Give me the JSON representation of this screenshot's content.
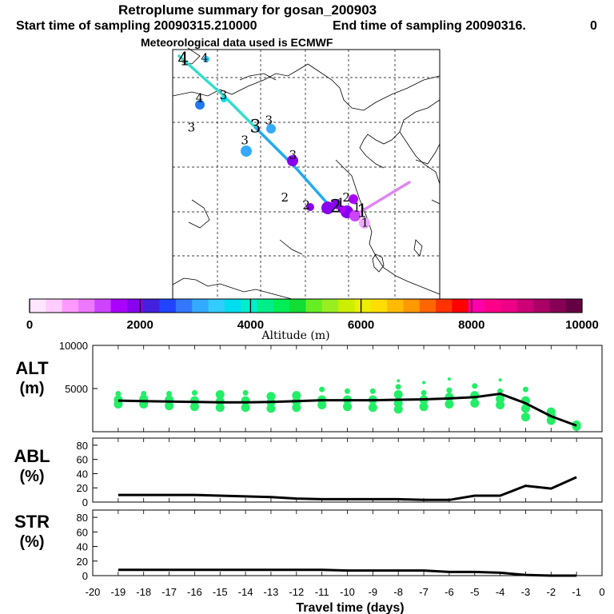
{
  "header": {
    "title": "Retroplume summary for gosan_200903",
    "start_label": "Start time of sampling 20090315.210000",
    "end_label": "End time of sampling 20090316.",
    "end_suffix": "0",
    "met_label": "Meteorological data used is ECMWF"
  },
  "colorbar": {
    "label": "Altitude (m)",
    "ticks": [
      "0",
      "2000",
      "4000",
      "6000",
      "8000",
      "10000"
    ],
    "min": 0,
    "max": 10000,
    "colors": [
      "#ffe6ff",
      "#ffccff",
      "#ff99ff",
      "#ee77ff",
      "#cc44ff",
      "#aa00ff",
      "#8800ee",
      "#4422dd",
      "#2244ff",
      "#3377ff",
      "#33aaff",
      "#33ccff",
      "#00ddee",
      "#00eecc",
      "#00ee88",
      "#00ee55",
      "#11dd33",
      "#66ee22",
      "#99ee22",
      "#ccee00",
      "#eeee00",
      "#ffdd00",
      "#ffbb00",
      "#ff9900",
      "#ff6600",
      "#ff3300",
      "#ff0000",
      "#ff00aa",
      "#ff0088",
      "#ee0088",
      "#cc0077",
      "#aa0066",
      "#880055",
      "#660044"
    ]
  },
  "map": {
    "trajectory_labels": [
      {
        "text": "4",
        "lon": 0.04,
        "lat": 0.03,
        "big": true
      },
      {
        "text": "4",
        "lon": 0.12,
        "lat": 0.03,
        "big": false
      },
      {
        "text": "4",
        "lon": 0.1,
        "lat": 0.19,
        "big": false
      },
      {
        "text": "3",
        "lon": 0.19,
        "lat": 0.18,
        "big": false
      },
      {
        "text": "3",
        "lon": 0.07,
        "lat": 0.31,
        "big": false
      },
      {
        "text": "3",
        "lon": 0.31,
        "lat": 0.3,
        "big": true
      },
      {
        "text": "3",
        "lon": 0.36,
        "lat": 0.28,
        "big": false
      },
      {
        "text": "3",
        "lon": 0.27,
        "lat": 0.36,
        "big": false
      },
      {
        "text": "3",
        "lon": 0.45,
        "lat": 0.42,
        "big": false
      },
      {
        "text": "2",
        "lon": 0.42,
        "lat": 0.59,
        "big": false
      },
      {
        "text": "2",
        "lon": 0.5,
        "lat": 0.62,
        "big": false
      },
      {
        "text": "2",
        "lon": 0.61,
        "lat": 0.62,
        "big": true
      },
      {
        "text": "2",
        "lon": 0.65,
        "lat": 0.59,
        "big": false
      },
      {
        "text": "1",
        "lon": 0.63,
        "lat": 0.61,
        "big": false
      },
      {
        "text": "1",
        "lon": 0.69,
        "lat": 0.63,
        "big": false
      },
      {
        "text": "1",
        "lon": 0.71,
        "lat": 0.64,
        "big": true
      },
      {
        "text": "1",
        "lon": 0.72,
        "lat": 0.69,
        "big": false
      }
    ]
  },
  "chart_data": [
    {
      "type": "line",
      "panel": "ALT",
      "ylabel": "ALT",
      "yunit": "(m)",
      "ylim": [
        0,
        10000
      ],
      "yticks": [
        5000,
        10000
      ],
      "x": [
        -19,
        -18,
        -17,
        -16,
        -15,
        -14,
        -13,
        -12,
        -11,
        -10,
        -9,
        -8,
        -7,
        -6,
        -5,
        -4,
        -3,
        -2,
        -1
      ],
      "values": [
        3600,
        3550,
        3500,
        3450,
        3400,
        3400,
        3450,
        3550,
        3650,
        3650,
        3650,
        3700,
        3750,
        3850,
        4000,
        4400,
        3300,
        1800,
        700
      ],
      "scatter": [
        {
          "x": -19,
          "ys": [
            3200,
            3700,
            4400
          ]
        },
        {
          "x": -18,
          "ys": [
            3200,
            3800,
            4400
          ]
        },
        {
          "x": -17,
          "ys": [
            3000,
            3700,
            4400
          ]
        },
        {
          "x": -16,
          "ys": [
            2900,
            3600,
            4500
          ]
        },
        {
          "x": -15,
          "ys": [
            2800,
            3500,
            4300
          ]
        },
        {
          "x": -14,
          "ys": [
            2800,
            3600,
            4500
          ]
        },
        {
          "x": -13,
          "ys": [
            2700,
            3400,
            4100
          ]
        },
        {
          "x": -12,
          "ys": [
            2800,
            3500,
            4200
          ]
        },
        {
          "x": -11,
          "ys": [
            3100,
            3700,
            4900
          ]
        },
        {
          "x": -10,
          "ys": [
            2900,
            3700,
            4700
          ]
        },
        {
          "x": -9,
          "ys": [
            2800,
            3700,
            4700
          ]
        },
        {
          "x": -8,
          "ys": [
            2600,
            3300,
            4300,
            5200,
            5900
          ]
        },
        {
          "x": -7,
          "ys": [
            2900,
            3700,
            4500,
            5700
          ]
        },
        {
          "x": -6,
          "ys": [
            3200,
            4000,
            4800,
            6100
          ]
        },
        {
          "x": -5,
          "ys": [
            3300,
            4200,
            5300
          ]
        },
        {
          "x": -4,
          "ys": [
            3100,
            3800,
            4700,
            6000
          ]
        },
        {
          "x": -3,
          "ys": [
            1700,
            2700,
            3600,
            4900
          ]
        },
        {
          "x": -2,
          "ys": [
            1300,
            1900,
            2300
          ]
        },
        {
          "x": -1,
          "ys": [
            600,
            800
          ]
        }
      ]
    },
    {
      "type": "line",
      "panel": "ABL",
      "ylabel": "ABL",
      "yunit": "(%)",
      "ylim": [
        0,
        90
      ],
      "yticks": [
        0,
        20,
        40,
        60,
        80
      ],
      "x": [
        -19,
        -18,
        -17,
        -16,
        -15,
        -14,
        -13,
        -12,
        -11,
        -10,
        -9,
        -8,
        -7,
        -6,
        -5,
        -4,
        -3,
        -2,
        -1
      ],
      "values": [
        10,
        10,
        10,
        10,
        9,
        8,
        7,
        5,
        4,
        4,
        4,
        4,
        3,
        3,
        9,
        9,
        23,
        19,
        35
      ]
    },
    {
      "type": "line",
      "panel": "STR",
      "ylabel": "STR",
      "yunit": "(%)",
      "ylim": [
        0,
        90
      ],
      "yticks": [
        0,
        20,
        40,
        60,
        80
      ],
      "x": [
        -19,
        -18,
        -17,
        -16,
        -15,
        -14,
        -13,
        -12,
        -11,
        -10,
        -9,
        -8,
        -7,
        -6,
        -5,
        -4,
        -3,
        -2,
        -1
      ],
      "values": [
        8,
        8,
        8,
        8,
        8,
        8,
        8,
        8,
        8,
        7,
        7,
        7,
        7,
        5,
        5,
        4,
        1,
        0,
        0
      ],
      "xlabel": "Travel time (days)",
      "xticks": [
        -20,
        -19,
        -18,
        -17,
        -16,
        -15,
        -14,
        -13,
        -12,
        -11,
        -10,
        -9,
        -8,
        -7,
        -6,
        -5,
        -4,
        -3,
        -2,
        -1,
        0
      ],
      "xlim": [
        -20,
        0
      ]
    }
  ]
}
